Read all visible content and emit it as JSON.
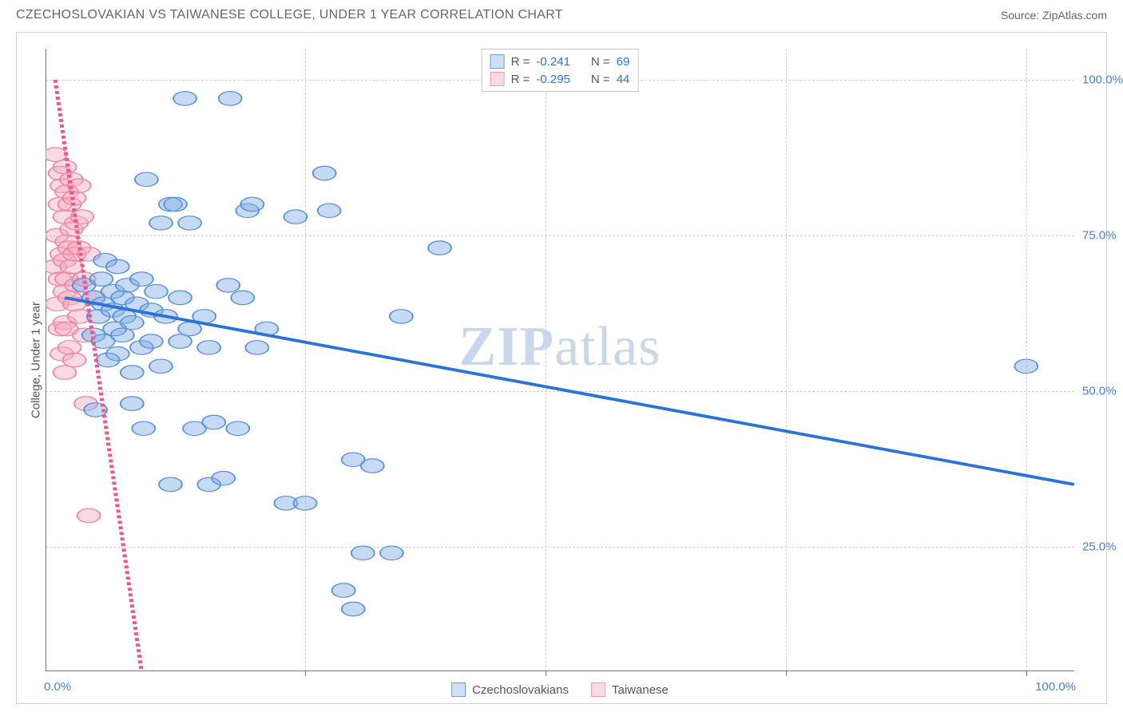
{
  "header": {
    "title": "CZECHOSLOVAKIAN VS TAIWANESE COLLEGE, UNDER 1 YEAR CORRELATION CHART",
    "source": "Source: ZipAtlas.com"
  },
  "watermark": {
    "prefix": "ZIP",
    "suffix": "atlas"
  },
  "chart": {
    "type": "scatter",
    "ylabel": "College, Under 1 year",
    "xlim": [
      -2,
      105
    ],
    "ylim": [
      5,
      105
    ],
    "yticks": [
      25,
      50,
      75,
      100
    ],
    "ytick_labels": [
      "25.0%",
      "50.0%",
      "75.0%",
      "100.0%"
    ],
    "xgrid_positions": [
      0,
      25,
      50,
      75,
      100
    ],
    "xtick_label_left": "0.0%",
    "xtick_label_right": "100.0%",
    "background_color": "#ffffff",
    "grid_color": "#d0d0d0",
    "axis_color": "#777777",
    "label_color": "#555555",
    "tick_label_color": "#4a7fc9",
    "label_fontsize": 15,
    "series": [
      {
        "name": "Czechoslovakians",
        "marker_fill": "rgba(128,173,230,0.45)",
        "marker_stroke": "#5b93d6",
        "marker_radius": 8,
        "line_color": "#2b73d6",
        "line_width": 3,
        "line_dash": "none",
        "swatch_fill": "#cde0f5",
        "swatch_border": "#6fa0de",
        "R": "-0.241",
        "N": "69",
        "trend": {
          "x1": 0,
          "y1": 65,
          "x2": 105,
          "y2": 35
        },
        "points": [
          [
            2,
            67
          ],
          [
            3,
            65
          ],
          [
            3,
            59
          ],
          [
            3.2,
            47
          ],
          [
            3.5,
            62
          ],
          [
            3.8,
            68
          ],
          [
            4,
            64
          ],
          [
            4,
            58
          ],
          [
            4.2,
            71
          ],
          [
            4.5,
            55
          ],
          [
            5,
            63
          ],
          [
            5,
            66
          ],
          [
            5.2,
            60
          ],
          [
            5.5,
            56
          ],
          [
            5.5,
            70
          ],
          [
            6,
            65
          ],
          [
            6,
            59
          ],
          [
            6.2,
            62
          ],
          [
            6.5,
            67
          ],
          [
            7,
            61
          ],
          [
            7,
            53
          ],
          [
            7,
            48
          ],
          [
            7.5,
            64
          ],
          [
            8,
            57
          ],
          [
            8,
            68
          ],
          [
            8.2,
            44
          ],
          [
            8.5,
            84
          ],
          [
            9,
            63
          ],
          [
            9,
            58
          ],
          [
            9.5,
            66
          ],
          [
            10,
            54
          ],
          [
            10,
            77
          ],
          [
            10.5,
            62
          ],
          [
            11,
            35
          ],
          [
            11,
            80
          ],
          [
            11.5,
            80
          ],
          [
            12,
            58
          ],
          [
            12,
            65
          ],
          [
            12.5,
            97
          ],
          [
            13,
            60
          ],
          [
            13,
            77
          ],
          [
            13.5,
            44
          ],
          [
            14.5,
            62
          ],
          [
            15,
            35
          ],
          [
            15,
            57
          ],
          [
            15.5,
            45
          ],
          [
            16.5,
            36
          ],
          [
            17,
            67
          ],
          [
            17.2,
            97
          ],
          [
            18,
            44
          ],
          [
            18.5,
            65
          ],
          [
            19,
            79
          ],
          [
            19.5,
            80
          ],
          [
            20,
            57
          ],
          [
            21,
            60
          ],
          [
            23,
            32
          ],
          [
            24,
            78
          ],
          [
            25,
            32
          ],
          [
            27,
            85
          ],
          [
            27.5,
            79
          ],
          [
            29,
            18
          ],
          [
            30,
            15
          ],
          [
            30,
            39
          ],
          [
            31,
            24
          ],
          [
            32,
            38
          ],
          [
            34,
            24
          ],
          [
            35,
            62
          ],
          [
            39,
            73
          ],
          [
            100,
            54
          ]
        ]
      },
      {
        "name": "Taiwanese",
        "marker_fill": "rgba(245,170,190,0.45)",
        "marker_stroke": "#e88aa5",
        "marker_radius": 8,
        "line_color": "#e75a8d",
        "line_width": 2.5,
        "line_dash": "5,4",
        "swatch_fill": "#fadbe4",
        "swatch_border": "#f29ab5",
        "R": "-0.295",
        "N": "44",
        "trend": {
          "x1": -1,
          "y1": 100,
          "x2": 8,
          "y2": 5
        },
        "points": [
          [
            -1,
            88
          ],
          [
            -1,
            70
          ],
          [
            -0.8,
            64
          ],
          [
            -0.8,
            75
          ],
          [
            -0.5,
            85
          ],
          [
            -0.5,
            80
          ],
          [
            -0.5,
            68
          ],
          [
            -0.5,
            60
          ],
          [
            -0.3,
            83
          ],
          [
            -0.3,
            72
          ],
          [
            -0.3,
            56
          ],
          [
            0,
            86
          ],
          [
            0,
            78
          ],
          [
            0,
            71
          ],
          [
            0,
            66
          ],
          [
            0,
            61
          ],
          [
            0,
            53
          ],
          [
            0.2,
            82
          ],
          [
            0.2,
            74
          ],
          [
            0.2,
            68
          ],
          [
            0.2,
            60
          ],
          [
            0.5,
            80
          ],
          [
            0.5,
            73
          ],
          [
            0.5,
            65
          ],
          [
            0.5,
            57
          ],
          [
            0.7,
            84
          ],
          [
            0.7,
            76
          ],
          [
            0.7,
            70
          ],
          [
            1,
            81
          ],
          [
            1,
            72
          ],
          [
            1,
            64
          ],
          [
            1,
            55
          ],
          [
            1.2,
            77
          ],
          [
            1.2,
            67
          ],
          [
            1.5,
            83
          ],
          [
            1.5,
            73
          ],
          [
            1.5,
            62
          ],
          [
            1.8,
            78
          ],
          [
            2,
            68
          ],
          [
            2,
            59
          ],
          [
            2.2,
            48
          ],
          [
            2.5,
            30
          ],
          [
            2.5,
            72
          ],
          [
            3,
            65
          ]
        ]
      }
    ],
    "legend_top": {
      "r_label": "R  =",
      "n_label": "N  ="
    },
    "legend_bottom": {
      "items": [
        "Czechoslovakians",
        "Taiwanese"
      ]
    }
  }
}
